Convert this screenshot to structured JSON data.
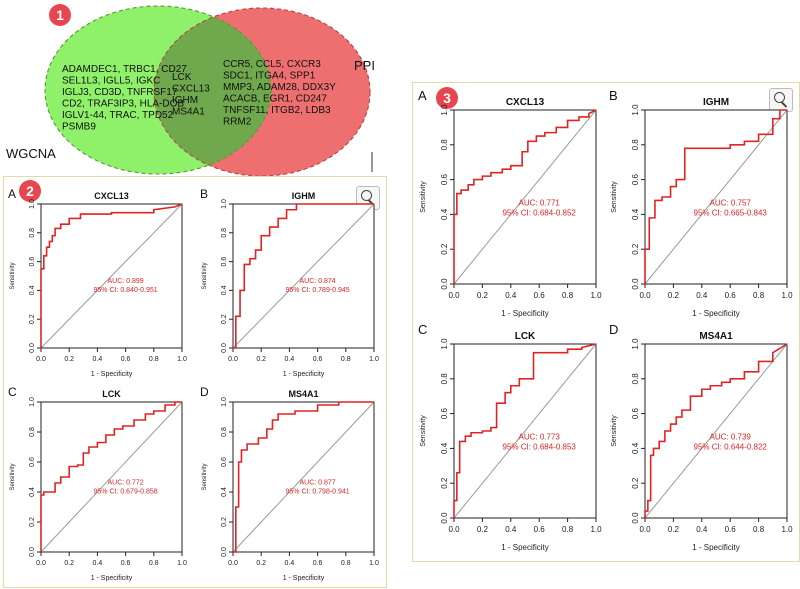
{
  "venn": {
    "badge": "1",
    "wgcna_label": "WGCNA",
    "ppi_label": "PPI",
    "wgcna_only": [
      "ADAMDEC1, TRBC1, CD27",
      "SEL1L3, IGLL5, IGKC",
      "IGLJ3, CD3D, TNFRSF17",
      "CD2, TRAF3IP3, HLA-DOB",
      "IGLV1-44, TRAC, TPD52",
      "PSMB9"
    ],
    "shared": [
      "LCK",
      "CXCL13",
      "IGHM",
      "MS4A1"
    ],
    "ppi_only": [
      "CCR5, CCL5, CXCR3",
      "SDC1, ITGA4, SPP1",
      "MMP3, ADAM28, DDX3Y",
      "ACACB, EGR1, CD247",
      "TNFSF11, ITGB2, LDB3",
      "RRM2"
    ],
    "colors": {
      "wgcna": "#8ff06a",
      "ppi": "#ee6f6f",
      "overlap": "#6fa84d"
    }
  },
  "panel2": {
    "badge": "2"
  },
  "panel3": {
    "badge": "3"
  },
  "chart_data": [
    {
      "type": "line",
      "group": "panel2",
      "letter": "A",
      "title": "CXCL13",
      "xlabel": "1 - Specificity",
      "ylabel": "Sensitivity",
      "xlim": [
        0,
        1
      ],
      "ylim": [
        0,
        1
      ],
      "xticks": [
        "0.0",
        "0.2",
        "0.4",
        "0.6",
        "0.8",
        "1.0"
      ],
      "yticks": [
        "0.0",
        "0.2",
        "0.4",
        "0.6",
        "0.8",
        "1.0"
      ],
      "auc_label": "AUC: 0.899",
      "ci_label": "95% CI: 0.840-0.951",
      "fpr": [
        0,
        0,
        0.02,
        0.02,
        0.04,
        0.04,
        0.06,
        0.06,
        0.08,
        0.08,
        0.1,
        0.1,
        0.14,
        0.14,
        0.2,
        0.2,
        0.28,
        0.28,
        0.5,
        0.5,
        0.8,
        0.8,
        0.95,
        1.0
      ],
      "tpr": [
        0,
        0.55,
        0.55,
        0.64,
        0.64,
        0.7,
        0.7,
        0.74,
        0.74,
        0.78,
        0.78,
        0.83,
        0.83,
        0.86,
        0.86,
        0.9,
        0.9,
        0.93,
        0.93,
        0.94,
        0.94,
        0.96,
        0.98,
        1.0
      ]
    },
    {
      "type": "line",
      "group": "panel2",
      "letter": "B",
      "title": "IGHM",
      "xlabel": "1 - Specificity",
      "ylabel": "Sensitivity",
      "xlim": [
        0,
        1
      ],
      "ylim": [
        0,
        1
      ],
      "xticks": [
        "0.0",
        "0.2",
        "0.4",
        "0.6",
        "0.8",
        "1.0"
      ],
      "yticks": [
        "0.0",
        "0.2",
        "0.4",
        "0.6",
        "0.8",
        "1.0"
      ],
      "auc_label": "AUC: 0.874",
      "ci_label": "95% CI: 0.789-0.945",
      "fpr": [
        0,
        0.02,
        0.02,
        0.05,
        0.05,
        0.08,
        0.08,
        0.12,
        0.12,
        0.16,
        0.16,
        0.2,
        0.2,
        0.26,
        0.26,
        0.32,
        0.32,
        0.38,
        0.38,
        0.45,
        0.45,
        1.0
      ],
      "tpr": [
        0,
        0,
        0.22,
        0.22,
        0.4,
        0.4,
        0.58,
        0.58,
        0.62,
        0.62,
        0.68,
        0.68,
        0.78,
        0.78,
        0.84,
        0.84,
        0.9,
        0.9,
        0.96,
        0.96,
        1.0,
        1.0
      ]
    },
    {
      "type": "line",
      "group": "panel2",
      "letter": "C",
      "title": "LCK",
      "xlabel": "1 - Specificity",
      "ylabel": "Sensitivity",
      "xlim": [
        0,
        1
      ],
      "ylim": [
        0,
        1
      ],
      "xticks": [
        "0.0",
        "0.2",
        "0.4",
        "0.6",
        "0.8",
        "1.0"
      ],
      "yticks": [
        "0.0",
        "0.2",
        "0.4",
        "0.6",
        "0.8",
        "1.0"
      ],
      "auc_label": "AUC: 0.772",
      "ci_label": "95% CI: 0.679-0.858",
      "fpr": [
        0,
        0,
        0.02,
        0.02,
        0.1,
        0.1,
        0.14,
        0.14,
        0.2,
        0.2,
        0.26,
        0.26,
        0.3,
        0.3,
        0.34,
        0.34,
        0.4,
        0.4,
        0.46,
        0.46,
        0.52,
        0.52,
        0.58,
        0.58,
        0.66,
        0.66,
        0.74,
        0.74,
        0.8,
        0.8,
        0.88,
        0.88,
        0.95,
        0.95,
        1.0
      ],
      "tpr": [
        0,
        0.38,
        0.38,
        0.4,
        0.4,
        0.46,
        0.46,
        0.5,
        0.5,
        0.57,
        0.57,
        0.58,
        0.58,
        0.66,
        0.66,
        0.7,
        0.7,
        0.73,
        0.73,
        0.78,
        0.78,
        0.82,
        0.82,
        0.84,
        0.84,
        0.88,
        0.88,
        0.92,
        0.92,
        0.94,
        0.94,
        0.98,
        0.98,
        1.0,
        1.0
      ]
    },
    {
      "type": "line",
      "group": "panel2",
      "letter": "D",
      "title": "MS4A1",
      "xlabel": "1 - Specificity",
      "ylabel": "Sensitivity",
      "xlim": [
        0,
        1
      ],
      "ylim": [
        0,
        1
      ],
      "xticks": [
        "0.0",
        "0.2",
        "0.4",
        "0.6",
        "0.8",
        "1.0"
      ],
      "yticks": [
        "0.0",
        "0.2",
        "0.4",
        "0.6",
        "0.8",
        "1.0"
      ],
      "auc_label": "AUC: 0.877",
      "ci_label": "95% CI: 0.798-0.941",
      "fpr": [
        0,
        0.02,
        0.02,
        0.04,
        0.04,
        0.06,
        0.06,
        0.1,
        0.1,
        0.18,
        0.18,
        0.24,
        0.24,
        0.28,
        0.28,
        0.32,
        0.32,
        0.44,
        0.44,
        0.6,
        0.6,
        0.75,
        0.75,
        1.0
      ],
      "tpr": [
        0,
        0,
        0.3,
        0.3,
        0.6,
        0.6,
        0.68,
        0.68,
        0.72,
        0.72,
        0.76,
        0.76,
        0.82,
        0.82,
        0.88,
        0.88,
        0.92,
        0.92,
        0.94,
        0.94,
        0.98,
        0.98,
        1.0,
        1.0
      ]
    },
    {
      "type": "line",
      "group": "panel3",
      "letter": "A",
      "title": "CXCL13",
      "xlabel": "1 - Specificity",
      "ylabel": "Sensitivity",
      "xlim": [
        0,
        1
      ],
      "ylim": [
        0,
        1
      ],
      "xticks": [
        "0.0",
        "0.2",
        "0.4",
        "0.6",
        "0.8",
        "1.0"
      ],
      "yticks": [
        "0.0",
        "0.2",
        "0.4",
        "0.6",
        "0.8",
        "1.0"
      ],
      "auc_label": "AUC: 0.771",
      "ci_label": "95% CI: 0.684-0.852",
      "fpr": [
        0,
        0,
        0.02,
        0.02,
        0.05,
        0.05,
        0.1,
        0.1,
        0.14,
        0.14,
        0.2,
        0.2,
        0.26,
        0.26,
        0.34,
        0.34,
        0.4,
        0.4,
        0.48,
        0.48,
        0.52,
        0.52,
        0.58,
        0.58,
        0.64,
        0.64,
        0.72,
        0.72,
        0.8,
        0.8,
        0.88,
        0.88,
        0.95,
        0.95,
        1.0
      ],
      "tpr": [
        0,
        0.4,
        0.4,
        0.52,
        0.52,
        0.54,
        0.54,
        0.57,
        0.57,
        0.6,
        0.6,
        0.62,
        0.62,
        0.64,
        0.64,
        0.66,
        0.66,
        0.68,
        0.68,
        0.76,
        0.76,
        0.82,
        0.82,
        0.85,
        0.85,
        0.87,
        0.87,
        0.9,
        0.9,
        0.94,
        0.94,
        0.96,
        0.96,
        0.98,
        1.0
      ]
    },
    {
      "type": "line",
      "group": "panel3",
      "letter": "B",
      "title": "IGHM",
      "xlabel": "1 - Specificity",
      "ylabel": "Sensitivity",
      "xlim": [
        0,
        1
      ],
      "ylim": [
        0,
        1
      ],
      "xticks": [
        "0.0",
        "0.2",
        "0.4",
        "0.6",
        "0.8",
        "1.0"
      ],
      "yticks": [
        "0.0",
        "0.2",
        "0.4",
        "0.6",
        "0.8",
        "1.0"
      ],
      "auc_label": "AUC: 0.757",
      "ci_label": "95% CI: 0.665-0.843",
      "fpr": [
        0,
        0,
        0.03,
        0.03,
        0.07,
        0.07,
        0.12,
        0.12,
        0.18,
        0.18,
        0.22,
        0.22,
        0.28,
        0.28,
        0.6,
        0.6,
        0.7,
        0.7,
        0.8,
        0.8,
        0.9,
        0.9,
        0.95,
        0.95,
        1.0
      ],
      "tpr": [
        0,
        0.2,
        0.2,
        0.38,
        0.38,
        0.48,
        0.48,
        0.5,
        0.5,
        0.56,
        0.56,
        0.6,
        0.6,
        0.78,
        0.78,
        0.8,
        0.8,
        0.82,
        0.82,
        0.86,
        0.86,
        0.95,
        0.95,
        1.0,
        1.0
      ]
    },
    {
      "type": "line",
      "group": "panel3",
      "letter": "C",
      "title": "LCK",
      "xlabel": "1 - Specificity",
      "ylabel": "Sensitivity",
      "xlim": [
        0,
        1
      ],
      "ylim": [
        0,
        1
      ],
      "xticks": [
        "0.0",
        "0.2",
        "0.4",
        "0.6",
        "0.8",
        "1.0"
      ],
      "yticks": [
        "0.0",
        "0.2",
        "0.4",
        "0.6",
        "0.8",
        "1.0"
      ],
      "auc_label": "AUC: 0.773",
      "ci_label": "95% CI: 0.684-0.853",
      "fpr": [
        0,
        0,
        0.02,
        0.02,
        0.04,
        0.04,
        0.08,
        0.08,
        0.12,
        0.12,
        0.2,
        0.2,
        0.26,
        0.26,
        0.3,
        0.3,
        0.36,
        0.36,
        0.4,
        0.4,
        0.46,
        0.46,
        0.56,
        0.56,
        0.8,
        0.8,
        0.9,
        0.9,
        0.95,
        1.0
      ],
      "tpr": [
        0,
        0.1,
        0.1,
        0.26,
        0.26,
        0.44,
        0.44,
        0.47,
        0.47,
        0.49,
        0.49,
        0.5,
        0.5,
        0.52,
        0.52,
        0.66,
        0.66,
        0.72,
        0.72,
        0.76,
        0.76,
        0.8,
        0.8,
        0.95,
        0.95,
        0.97,
        0.97,
        0.98,
        0.99,
        1.0
      ]
    },
    {
      "type": "line",
      "group": "panel3",
      "letter": "D",
      "title": "MS4A1",
      "xlabel": "1 - Specificity",
      "ylabel": "Sensitivity",
      "xlim": [
        0,
        1
      ],
      "ylim": [
        0,
        1
      ],
      "xticks": [
        "0.0",
        "0.2",
        "0.4",
        "0.6",
        "0.8",
        "1.0"
      ],
      "yticks": [
        "0.0",
        "0.2",
        "0.4",
        "0.6",
        "0.8",
        "1.0"
      ],
      "auc_label": "AUC: 0.739",
      "ci_label": "95% CI: 0.644-0.822",
      "fpr": [
        0,
        0,
        0.02,
        0.02,
        0.04,
        0.04,
        0.06,
        0.06,
        0.1,
        0.1,
        0.14,
        0.14,
        0.18,
        0.18,
        0.22,
        0.22,
        0.26,
        0.26,
        0.32,
        0.32,
        0.4,
        0.4,
        0.46,
        0.46,
        0.54,
        0.54,
        0.6,
        0.6,
        0.7,
        0.7,
        0.8,
        0.8,
        0.9,
        0.9,
        1.0
      ],
      "tpr": [
        0,
        0.04,
        0.04,
        0.1,
        0.1,
        0.36,
        0.36,
        0.4,
        0.4,
        0.44,
        0.44,
        0.5,
        0.5,
        0.54,
        0.54,
        0.58,
        0.58,
        0.62,
        0.62,
        0.7,
        0.7,
        0.74,
        0.74,
        0.76,
        0.76,
        0.78,
        0.78,
        0.8,
        0.8,
        0.84,
        0.84,
        0.9,
        0.9,
        0.95,
        1.0
      ]
    }
  ]
}
